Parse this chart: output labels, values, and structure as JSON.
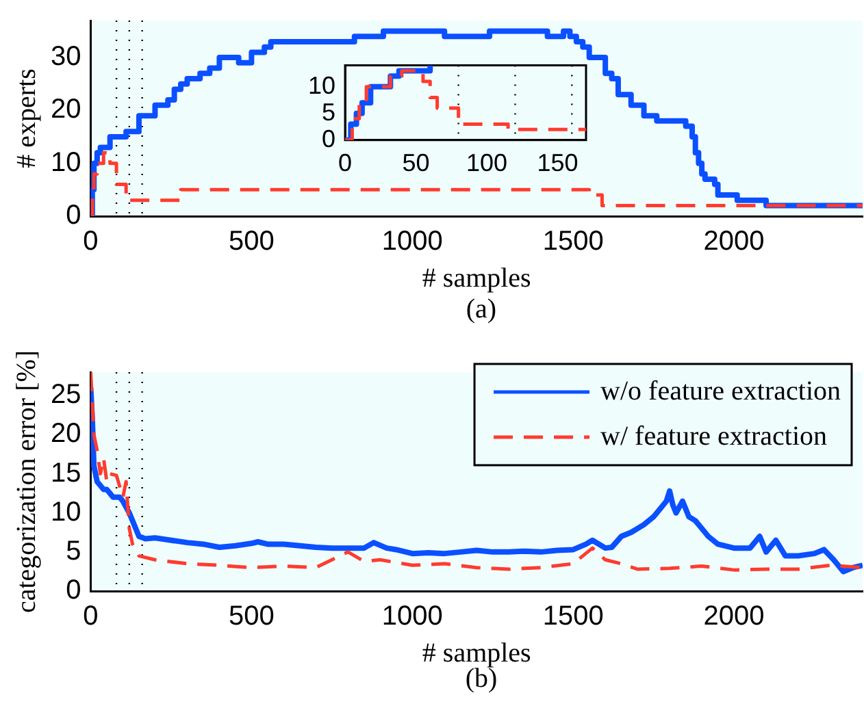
{
  "chart_data": [
    {
      "type": "step",
      "xlabel": "# samples",
      "ylabel": "# experts",
      "xlim": [
        0,
        2400
      ],
      "ylim": [
        0,
        37
      ],
      "xticks": [
        0,
        500,
        1000,
        1500,
        2000
      ],
      "yticks": [
        0,
        10,
        20,
        30
      ],
      "annotations": [
        "(a)"
      ],
      "ref_lines": [
        {
          "axis": "x",
          "value": 80,
          "color": "#000000",
          "line_style": "dotted"
        },
        {
          "axis": "x",
          "value": 120,
          "color": "#000000",
          "line_style": "dotted"
        },
        {
          "axis": "x",
          "value": 160,
          "color": "#000000",
          "line_style": "dotted"
        }
      ],
      "series": [
        {
          "color": "#0a50ff",
          "line_style": "solid",
          "x": [
            0,
            5,
            10,
            20,
            30,
            60,
            110,
            150,
            200,
            240,
            260,
            280,
            300,
            340,
            370,
            400,
            460,
            500,
            540,
            560,
            820,
            910,
            1100,
            1240,
            1420,
            1470,
            1490,
            1510,
            1530,
            1550,
            1600,
            1620,
            1640,
            1680,
            1720,
            1760,
            1850,
            1870,
            1880,
            1890,
            1900,
            1910,
            1940,
            1950,
            2010,
            2100,
            2400
          ],
          "values": [
            0,
            5,
            10,
            12,
            13,
            15,
            16,
            19,
            21,
            22,
            24,
            25,
            26,
            27,
            28,
            30,
            29,
            31,
            32,
            33,
            34,
            35,
            34,
            35,
            34,
            35,
            34,
            33,
            32,
            30,
            27,
            26,
            23,
            21,
            19,
            18,
            17,
            15,
            12,
            10,
            8,
            7,
            6,
            4,
            3,
            2,
            2
          ]
        },
        {
          "color": "#ff3b2f",
          "line_style": "dashed",
          "x": [
            0,
            5,
            10,
            20,
            40,
            60,
            80,
            110,
            280,
            1550,
            1590,
            2400
          ],
          "values": [
            0,
            4,
            8,
            10,
            12,
            10,
            6,
            3,
            5,
            4,
            2,
            2
          ]
        }
      ]
    },
    {
      "type": "step",
      "xlim": [
        0,
        170
      ],
      "ylim": [
        0,
        14
      ],
      "xticks": [
        0,
        50,
        100,
        150
      ],
      "yticks": [
        0,
        5,
        10
      ],
      "ref_lines": [
        {
          "axis": "x",
          "value": 80,
          "color": "#000000",
          "line_style": "dotted"
        },
        {
          "axis": "x",
          "value": 120,
          "color": "#000000",
          "line_style": "dotted"
        },
        {
          "axis": "x",
          "value": 160,
          "color": "#000000",
          "line_style": "dotted"
        }
      ],
      "series": [
        {
          "color": "#0a50ff",
          "line_style": "solid",
          "x": [
            0,
            4,
            8,
            12,
            18,
            28,
            32,
            38,
            56,
            60
          ],
          "values": [
            0,
            3,
            5,
            7,
            10,
            10,
            12,
            13,
            13,
            14
          ]
        },
        {
          "color": "#ff3b2f",
          "line_style": "dashed",
          "x": [
            0,
            5,
            10,
            15,
            27,
            32,
            40,
            55,
            60,
            65,
            80,
            110,
            115,
            170
          ],
          "values": [
            0,
            4,
            7,
            10,
            10,
            12,
            13,
            11,
            8,
            6,
            3,
            3,
            2,
            2
          ]
        }
      ]
    },
    {
      "type": "line",
      "xlabel": "# samples",
      "ylabel": "categorization error [%]",
      "xlim": [
        0,
        2400
      ],
      "ylim": [
        0,
        28
      ],
      "xticks": [
        0,
        500,
        1000,
        1500,
        2000
      ],
      "yticks": [
        0,
        5,
        10,
        15,
        20,
        25
      ],
      "annotations": [
        "(b)"
      ],
      "legend": "top right",
      "ref_lines": [
        {
          "axis": "x",
          "value": 80,
          "color": "#000000",
          "line_style": "dotted"
        },
        {
          "axis": "x",
          "value": 120,
          "color": "#000000",
          "line_style": "dotted"
        },
        {
          "axis": "x",
          "value": 160,
          "color": "#000000",
          "line_style": "dotted"
        }
      ],
      "series": [
        {
          "name": "w/o feature extraction",
          "color": "#0a50ff",
          "line_style": "solid",
          "x": [
            0,
            5,
            10,
            15,
            20,
            30,
            40,
            50,
            70,
            90,
            100,
            120,
            130,
            150,
            170,
            200,
            250,
            300,
            350,
            400,
            450,
            500,
            520,
            550,
            600,
            650,
            700,
            750,
            800,
            850,
            880,
            920,
            950,
            1000,
            1050,
            1100,
            1150,
            1200,
            1250,
            1300,
            1350,
            1400,
            1450,
            1500,
            1540,
            1560,
            1600,
            1620,
            1650,
            1680,
            1700,
            1720,
            1750,
            1770,
            1790,
            1800,
            1810,
            1820,
            1840,
            1860,
            1880,
            1900,
            1920,
            1950,
            2000,
            2050,
            2080,
            2100,
            2130,
            2160,
            2200,
            2250,
            2280,
            2310,
            2340,
            2370,
            2400
          ],
          "values": [
            26,
            22,
            16,
            15,
            14,
            13.5,
            13,
            13,
            12,
            12,
            11.5,
            10,
            9,
            7,
            6.7,
            6.8,
            6.5,
            6.2,
            6,
            5.6,
            5.8,
            6.1,
            6.3,
            6,
            6,
            5.8,
            5.6,
            5.5,
            5.5,
            5.5,
            6.2,
            5.5,
            5.3,
            4.8,
            4.9,
            4.8,
            5,
            5.2,
            5,
            5,
            5.1,
            5,
            5.2,
            5.3,
            6,
            6.5,
            5.5,
            5.6,
            7,
            7.5,
            8,
            8.5,
            9.5,
            10.5,
            11.5,
            12.8,
            11,
            10,
            11.5,
            9.5,
            9,
            8,
            7,
            6,
            5.5,
            5.5,
            7,
            5,
            6.5,
            4.5,
            4.5,
            4.8,
            5.3,
            4,
            2.5,
            3,
            3.3
          ]
        },
        {
          "name": "w/ feature extraction",
          "color": "#ff3b2f",
          "line_style": "dashed",
          "x": [
            0,
            5,
            10,
            20,
            30,
            40,
            50,
            60,
            80,
            100,
            110,
            120,
            130,
            150,
            200,
            300,
            400,
            500,
            600,
            700,
            750,
            800,
            850,
            900,
            1000,
            1100,
            1200,
            1300,
            1400,
            1500,
            1560,
            1600,
            1650,
            1700,
            1800,
            1900,
            2000,
            2100,
            2200,
            2300,
            2400
          ],
          "values": [
            28,
            24,
            20,
            18,
            15,
            17,
            14,
            15,
            14.8,
            12,
            14,
            8,
            6,
            4.5,
            4,
            3.5,
            3.3,
            3,
            3.2,
            3,
            4,
            5,
            3.8,
            4,
            3.3,
            3.5,
            3,
            2.8,
            3,
            3.5,
            5.5,
            4,
            3.5,
            2.8,
            2.9,
            3.2,
            2.7,
            2.8,
            2.8,
            3.3,
            3
          ]
        }
      ]
    }
  ]
}
